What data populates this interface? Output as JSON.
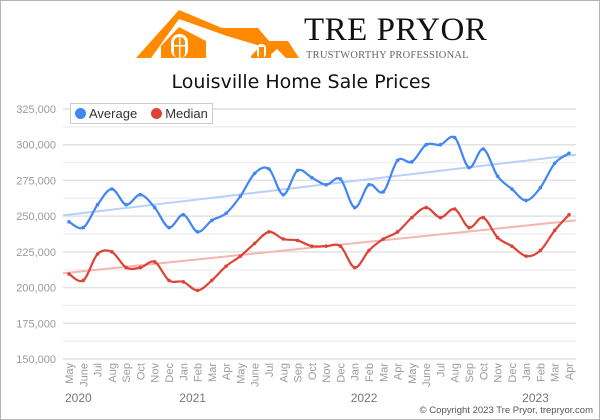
{
  "brand": {
    "name": "TRE PRYOR",
    "tagline": "TRUSTWORTHY PROFESSIONAL",
    "color": "#ff8a00"
  },
  "copyright": "© Copyright 2023 Tre Pryor, trepryor.com",
  "chart_data": {
    "type": "line",
    "title": "Louisville Home Sale Prices",
    "xlabel": "",
    "ylabel": "",
    "ylim": [
      150000,
      325000
    ],
    "yticks": [
      150000,
      175000,
      200000,
      225000,
      250000,
      275000,
      300000,
      325000
    ],
    "ytick_labels": [
      "150,000",
      "175,000",
      "200,000",
      "225,000",
      "250,000",
      "275,000",
      "300,000",
      "325,000"
    ],
    "categories": [
      "May",
      "June",
      "Jul",
      "Aug",
      "Sep",
      "Oct",
      "Nov",
      "Dec",
      "Jan",
      "Feb",
      "Mar",
      "Apr",
      "May",
      "June",
      "Jul",
      "Aug",
      "Sep",
      "Oct",
      "Nov",
      "Dec",
      "Jan",
      "Feb",
      "Mar",
      "Apr",
      "May",
      "June",
      "Jul",
      "Aug",
      "Sep",
      "Oct",
      "Nov",
      "Dec",
      "Jan",
      "Feb",
      "Mar",
      "Apr"
    ],
    "year_labels": [
      {
        "label": "2020",
        "index": 0
      },
      {
        "label": "2021",
        "index": 8
      },
      {
        "label": "2022",
        "index": 20
      },
      {
        "label": "2023",
        "index": 32
      }
    ],
    "grid": true,
    "legend_position": "top-left",
    "series": [
      {
        "name": "Average",
        "color": "#4285f4",
        "trend_color": "#b8d0fb",
        "values": [
          246000,
          242000,
          258000,
          269000,
          258000,
          265000,
          256000,
          242000,
          251000,
          239000,
          247000,
          252000,
          264000,
          280000,
          283000,
          265000,
          282000,
          277000,
          272000,
          276000,
          256000,
          272000,
          267000,
          289000,
          288000,
          300000,
          300000,
          305000,
          284000,
          297000,
          278000,
          269000,
          261000,
          270000,
          287000,
          294000
        ],
        "trendline": [
          250500,
          293000
        ]
      },
      {
        "name": "Median",
        "color": "#db4437",
        "trend_color": "#f4b6b0",
        "values": [
          209500,
          205000,
          223500,
          225000,
          214000,
          214000,
          218000,
          205000,
          204000,
          198000,
          205000,
          215000,
          222000,
          231000,
          239000,
          234000,
          233000,
          229000,
          229000,
          229000,
          214000,
          226000,
          234000,
          239000,
          249000,
          256000,
          249000,
          255000,
          242000,
          249000,
          235000,
          229000,
          222000,
          226000,
          240000,
          251000
        ],
        "trendline": [
          210000,
          247000
        ]
      }
    ]
  }
}
